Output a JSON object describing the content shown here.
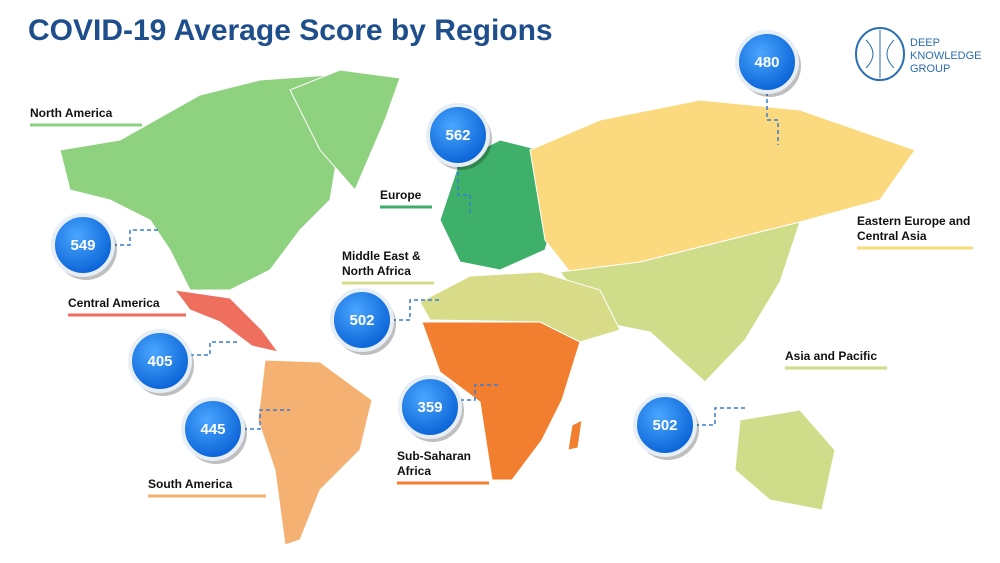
{
  "header": {
    "title": "COVID-19 Average Score by Regions"
  },
  "logo": {
    "lines": [
      "DEEP",
      "KNOWLEDGE",
      "GROUP"
    ]
  },
  "regions": [
    {
      "name": [
        "North America"
      ],
      "score": "549",
      "color": "#8ed27f"
    },
    {
      "name": [
        "Europe"
      ],
      "score": "562",
      "color": "#3fb06a"
    },
    {
      "name": [
        "Middle East &",
        "North Africa"
      ],
      "score": "502",
      "color": "#d8dc88"
    },
    {
      "name": [
        "Central America"
      ],
      "score": "405",
      "color": "#ef6f5e"
    },
    {
      "name": [
        "South America"
      ],
      "score": "445",
      "color": "#f5b172"
    },
    {
      "name": [
        "Sub-Saharan",
        "Africa"
      ],
      "score": "359",
      "color": "#f27f2f"
    },
    {
      "name": [
        "Eastern Europe and",
        "Central Asia"
      ],
      "score": "480",
      "color": "#fbd97e"
    },
    {
      "name": [
        "Asia and Pacific"
      ],
      "score": "502",
      "color": "#cfdc8a"
    }
  ]
}
